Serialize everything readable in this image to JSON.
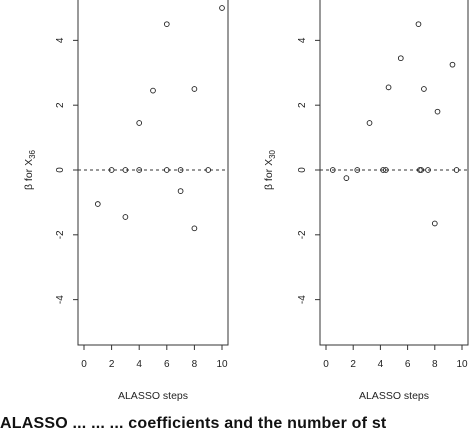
{
  "caption": "ALASSO ... ... ... coefficients and the number of st",
  "chart_data": [
    {
      "type": "scatter",
      "title": "",
      "xlabel": "ALASSO steps",
      "ylabel": "β for X",
      "ylabel_subscript": "36",
      "xlim": [
        0,
        10
      ],
      "ylim": [
        -5.4,
        5.4
      ],
      "xticks": [
        0,
        2,
        4,
        6,
        8,
        10
      ],
      "yticks": [
        -4,
        -2,
        0,
        2,
        4
      ],
      "xtick_labels": [
        "0",
        "2",
        "4",
        "6",
        "8",
        "10"
      ],
      "ytick_labels": [
        "-4",
        "-2",
        "0",
        "2",
        "4"
      ],
      "reference_line": 0,
      "grid": false,
      "points": [
        {
          "x": 1,
          "y": -1.05
        },
        {
          "x": 2,
          "y": 0
        },
        {
          "x": 3,
          "y": 0
        },
        {
          "x": 3,
          "y": -1.45
        },
        {
          "x": 4,
          "y": 0
        },
        {
          "x": 4,
          "y": 1.45
        },
        {
          "x": 5,
          "y": 2.45
        },
        {
          "x": 6,
          "y": 4.5
        },
        {
          "x": 6,
          "y": 0
        },
        {
          "x": 7,
          "y": 0
        },
        {
          "x": 7,
          "y": -0.65
        },
        {
          "x": 8,
          "y": 2.5
        },
        {
          "x": 8,
          "y": -1.8
        },
        {
          "x": 9,
          "y": 0
        },
        {
          "x": 10,
          "y": 5.0
        }
      ]
    },
    {
      "type": "scatter",
      "title": "",
      "xlabel": "ALASSO steps",
      "ylabel": "β for X",
      "ylabel_subscript": "30",
      "xlim": [
        0,
        10
      ],
      "ylim": [
        -5.4,
        5.4
      ],
      "xticks": [
        0,
        2,
        4,
        6,
        8,
        10
      ],
      "yticks": [
        -4,
        -2,
        0,
        2,
        4
      ],
      "xtick_labels": [
        "0",
        "2",
        "4",
        "6",
        "8",
        "10"
      ],
      "ytick_labels": [
        "-4",
        "-2",
        "0",
        "2",
        "4"
      ],
      "reference_line": 0,
      "grid": false,
      "points": [
        {
          "x": 0.5,
          "y": 0
        },
        {
          "x": 1.5,
          "y": -0.25
        },
        {
          "x": 2.3,
          "y": 0
        },
        {
          "x": 3.2,
          "y": 1.45
        },
        {
          "x": 4.2,
          "y": 0
        },
        {
          "x": 4.4,
          "y": 0
        },
        {
          "x": 4.6,
          "y": 2.55
        },
        {
          "x": 5.5,
          "y": 3.45
        },
        {
          "x": 6.8,
          "y": 4.5
        },
        {
          "x": 6.9,
          "y": 0
        },
        {
          "x": 7.0,
          "y": 0
        },
        {
          "x": 7.2,
          "y": 2.5
        },
        {
          "x": 7.5,
          "y": 0
        },
        {
          "x": 8.0,
          "y": -1.65
        },
        {
          "x": 8.2,
          "y": 1.8
        },
        {
          "x": 9.3,
          "y": 3.25
        },
        {
          "x": 9.6,
          "y": 0
        }
      ]
    }
  ]
}
